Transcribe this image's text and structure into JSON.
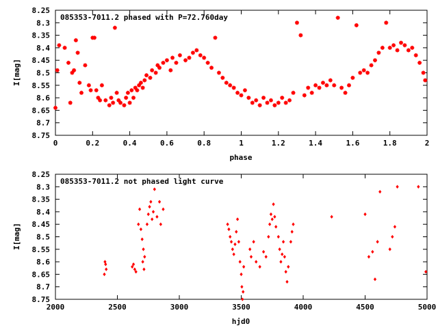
{
  "chart_data": [
    {
      "type": "scatter",
      "title": "085353-7011.2 phased with P=72.760day",
      "xlabel": "phase",
      "ylabel": "I[mag]",
      "xlim": [
        0,
        2
      ],
      "ylim": [
        8.25,
        8.75
      ],
      "y_inverted": true,
      "x_ticks": [
        0,
        0.2,
        0.4,
        0.6,
        0.8,
        1,
        1.2,
        1.4,
        1.6,
        1.8,
        2
      ],
      "x_tick_labels": [
        "0",
        "0.2",
        "0.4",
        "0.6",
        "0.8",
        "1",
        "1.2",
        "1.4",
        "1.6",
        "1.8",
        "2"
      ],
      "y_ticks": [
        8.25,
        8.3,
        8.35,
        8.4,
        8.45,
        8.5,
        8.55,
        8.6,
        8.65,
        8.7,
        8.75
      ],
      "y_tick_labels": [
        "8.25",
        "8.3",
        "8.35",
        "8.4",
        "8.45",
        "8.5",
        "8.55",
        "8.6",
        "8.65",
        "8.7",
        "8.75"
      ],
      "grid": false,
      "marker": "star",
      "color": "#ff0000",
      "points": [
        [
          0.0,
          8.64
        ],
        [
          0.01,
          8.49
        ],
        [
          0.02,
          8.39
        ],
        [
          0.05,
          8.4
        ],
        [
          0.07,
          8.46
        ],
        [
          0.08,
          8.62
        ],
        [
          0.09,
          8.5
        ],
        [
          0.1,
          8.49
        ],
        [
          0.11,
          8.37
        ],
        [
          0.12,
          8.42
        ],
        [
          0.13,
          8.54
        ],
        [
          0.14,
          8.58
        ],
        [
          0.16,
          8.47
        ],
        [
          0.18,
          8.55
        ],
        [
          0.19,
          8.57
        ],
        [
          0.2,
          8.36
        ],
        [
          0.21,
          8.36
        ],
        [
          0.22,
          8.57
        ],
        [
          0.23,
          8.6
        ],
        [
          0.24,
          8.61
        ],
        [
          0.25,
          8.55
        ],
        [
          0.27,
          8.61
        ],
        [
          0.29,
          8.63
        ],
        [
          0.3,
          8.6
        ],
        [
          0.31,
          8.62
        ],
        [
          0.32,
          8.32
        ],
        [
          0.33,
          8.58
        ],
        [
          0.34,
          8.61
        ],
        [
          0.35,
          8.62
        ],
        [
          0.37,
          8.63
        ],
        [
          0.38,
          8.6
        ],
        [
          0.39,
          8.58
        ],
        [
          0.4,
          8.62
        ],
        [
          0.41,
          8.57
        ],
        [
          0.42,
          8.6
        ],
        [
          0.43,
          8.56
        ],
        [
          0.44,
          8.57
        ],
        [
          0.45,
          8.55
        ],
        [
          0.46,
          8.54
        ],
        [
          0.47,
          8.56
        ],
        [
          0.48,
          8.53
        ],
        [
          0.49,
          8.51
        ],
        [
          0.51,
          8.52
        ],
        [
          0.52,
          8.49
        ],
        [
          0.54,
          8.5
        ],
        [
          0.55,
          8.47
        ],
        [
          0.56,
          8.48
        ],
        [
          0.58,
          8.46
        ],
        [
          0.6,
          8.45
        ],
        [
          0.62,
          8.49
        ],
        [
          0.63,
          8.44
        ],
        [
          0.65,
          8.46
        ],
        [
          0.67,
          8.43
        ],
        [
          0.7,
          8.45
        ],
        [
          0.72,
          8.44
        ],
        [
          0.74,
          8.42
        ],
        [
          0.76,
          8.41
        ],
        [
          0.78,
          8.43
        ],
        [
          0.8,
          8.44
        ],
        [
          0.82,
          8.46
        ],
        [
          0.84,
          8.48
        ],
        [
          0.86,
          8.36
        ],
        [
          0.88,
          8.5
        ],
        [
          0.9,
          8.52
        ],
        [
          0.92,
          8.54
        ],
        [
          0.94,
          8.55
        ],
        [
          0.96,
          8.56
        ],
        [
          0.98,
          8.58
        ],
        [
          1.0,
          8.59
        ],
        [
          1.02,
          8.57
        ],
        [
          1.04,
          8.6
        ],
        [
          1.06,
          8.62
        ],
        [
          1.08,
          8.61
        ],
        [
          1.1,
          8.63
        ],
        [
          1.12,
          8.6
        ],
        [
          1.14,
          8.62
        ],
        [
          1.16,
          8.61
        ],
        [
          1.18,
          8.63
        ],
        [
          1.2,
          8.62
        ],
        [
          1.22,
          8.6
        ],
        [
          1.24,
          8.62
        ],
        [
          1.26,
          8.61
        ],
        [
          1.28,
          8.58
        ],
        [
          1.3,
          8.3
        ],
        [
          1.32,
          8.35
        ],
        [
          1.34,
          8.59
        ],
        [
          1.36,
          8.56
        ],
        [
          1.38,
          8.58
        ],
        [
          1.4,
          8.55
        ],
        [
          1.42,
          8.56
        ],
        [
          1.44,
          8.54
        ],
        [
          1.46,
          8.55
        ],
        [
          1.48,
          8.53
        ],
        [
          1.5,
          8.55
        ],
        [
          1.52,
          8.28
        ],
        [
          1.54,
          8.56
        ],
        [
          1.56,
          8.58
        ],
        [
          1.58,
          8.55
        ],
        [
          1.6,
          8.52
        ],
        [
          1.62,
          8.31
        ],
        [
          1.64,
          8.5
        ],
        [
          1.66,
          8.49
        ],
        [
          1.68,
          8.5
        ],
        [
          1.7,
          8.47
        ],
        [
          1.72,
          8.45
        ],
        [
          1.74,
          8.42
        ],
        [
          1.76,
          8.4
        ],
        [
          1.78,
          8.3
        ],
        [
          1.8,
          8.4
        ],
        [
          1.82,
          8.39
        ],
        [
          1.84,
          8.41
        ],
        [
          1.86,
          8.38
        ],
        [
          1.88,
          8.39
        ],
        [
          1.9,
          8.41
        ],
        [
          1.92,
          8.4
        ],
        [
          1.94,
          8.43
        ],
        [
          1.96,
          8.46
        ],
        [
          1.98,
          8.5
        ],
        [
          1.99,
          8.53
        ]
      ]
    },
    {
      "type": "scatter",
      "title": "085353-7011.2 not phased light curve",
      "xlabel": "hjd0",
      "ylabel": "I[mag]",
      "xlim": [
        2000,
        5000
      ],
      "ylim": [
        8.25,
        8.75
      ],
      "y_inverted": true,
      "x_ticks": [
        2000,
        2500,
        3000,
        3500,
        4000,
        4500,
        5000
      ],
      "x_tick_labels": [
        "2000",
        "2500",
        "3000",
        "3500",
        "4000",
        "4500",
        "5000"
      ],
      "y_ticks": [
        8.25,
        8.3,
        8.35,
        8.4,
        8.45,
        8.5,
        8.55,
        8.6,
        8.65,
        8.7,
        8.75
      ],
      "y_tick_labels": [
        "8.25",
        "8.3",
        "8.35",
        "8.4",
        "8.45",
        "8.5",
        "8.55",
        "8.6",
        "8.65",
        "8.7",
        "8.75"
      ],
      "grid": false,
      "marker": "diamond",
      "color": "#ff0000",
      "points": [
        [
          2400,
          8.6
        ],
        [
          2405,
          8.61
        ],
        [
          2410,
          8.63
        ],
        [
          2395,
          8.65
        ],
        [
          2620,
          8.62
        ],
        [
          2630,
          8.61
        ],
        [
          2640,
          8.63
        ],
        [
          2650,
          8.64
        ],
        [
          2670,
          8.45
        ],
        [
          2680,
          8.39
        ],
        [
          2690,
          8.47
        ],
        [
          2700,
          8.51
        ],
        [
          2710,
          8.55
        ],
        [
          2705,
          8.6
        ],
        [
          2715,
          8.63
        ],
        [
          2720,
          8.58
        ],
        [
          2740,
          8.45
        ],
        [
          2750,
          8.41
        ],
        [
          2760,
          8.38
        ],
        [
          2770,
          8.36
        ],
        [
          2780,
          8.43
        ],
        [
          2790,
          8.4
        ],
        [
          2800,
          8.31
        ],
        [
          2820,
          8.42
        ],
        [
          2840,
          8.36
        ],
        [
          2850,
          8.45
        ],
        [
          2870,
          8.39
        ],
        [
          3390,
          8.45
        ],
        [
          3400,
          8.47
        ],
        [
          3410,
          8.5
        ],
        [
          3420,
          8.52
        ],
        [
          3430,
          8.55
        ],
        [
          3440,
          8.57
        ],
        [
          3450,
          8.53
        ],
        [
          3460,
          8.48
        ],
        [
          3470,
          8.43
        ],
        [
          3480,
          8.52
        ],
        [
          3490,
          8.6
        ],
        [
          3500,
          8.65
        ],
        [
          3505,
          8.7
        ],
        [
          3510,
          8.75
        ],
        [
          3515,
          8.72
        ],
        [
          3520,
          8.62
        ],
        [
          3570,
          8.55
        ],
        [
          3580,
          8.58
        ],
        [
          3600,
          8.52
        ],
        [
          3620,
          8.6
        ],
        [
          3650,
          8.62
        ],
        [
          3680,
          8.56
        ],
        [
          3700,
          8.58
        ],
        [
          3720,
          8.5
        ],
        [
          3730,
          8.45
        ],
        [
          3740,
          8.41
        ],
        [
          3750,
          8.43
        ],
        [
          3760,
          8.37
        ],
        [
          3770,
          8.42
        ],
        [
          3780,
          8.46
        ],
        [
          3800,
          8.5
        ],
        [
          3810,
          8.55
        ],
        [
          3820,
          8.6
        ],
        [
          3830,
          8.57
        ],
        [
          3840,
          8.52
        ],
        [
          3850,
          8.58
        ],
        [
          3860,
          8.64
        ],
        [
          3870,
          8.68
        ],
        [
          3880,
          8.62
        ],
        [
          3900,
          8.52
        ],
        [
          3910,
          8.48
        ],
        [
          3920,
          8.45
        ],
        [
          4230,
          8.42
        ],
        [
          4500,
          8.41
        ],
        [
          4530,
          8.58
        ],
        [
          4560,
          8.56
        ],
        [
          4580,
          8.67
        ],
        [
          4600,
          8.52
        ],
        [
          4620,
          8.32
        ],
        [
          4700,
          8.55
        ],
        [
          4720,
          8.5
        ],
        [
          4740,
          8.46
        ],
        [
          4760,
          8.3
        ],
        [
          4930,
          8.3
        ],
        [
          4990,
          8.64
        ]
      ]
    }
  ]
}
